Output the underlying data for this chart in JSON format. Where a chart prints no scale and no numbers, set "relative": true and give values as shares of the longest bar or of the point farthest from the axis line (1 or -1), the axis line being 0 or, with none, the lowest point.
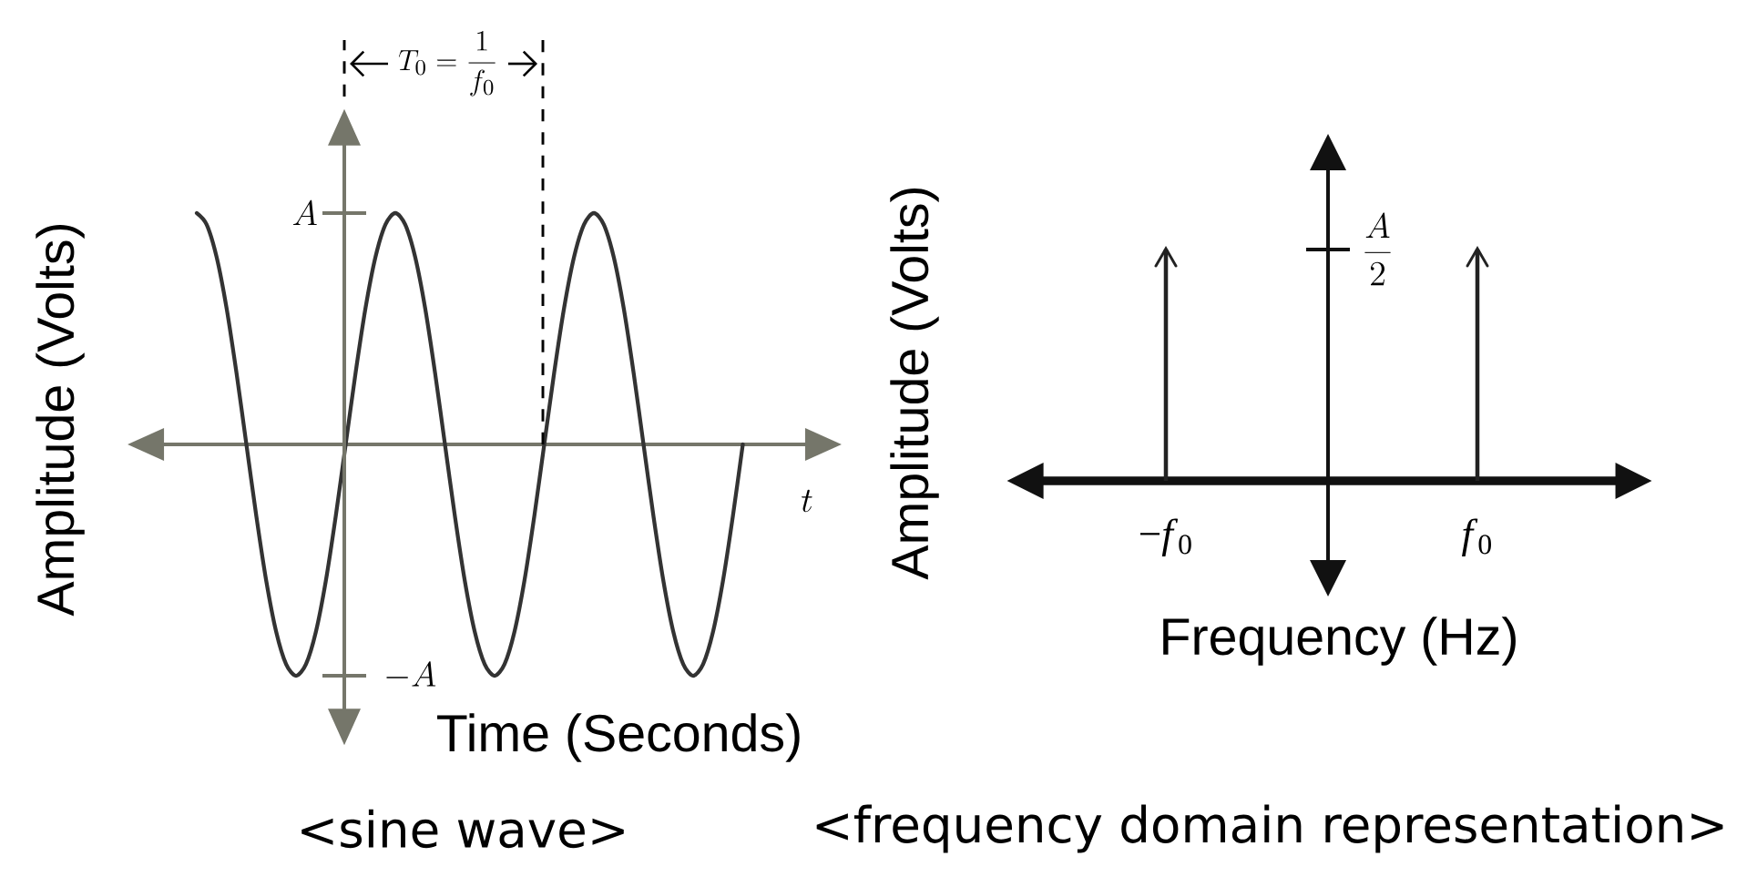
{
  "chart_data": [
    {
      "type": "line",
      "relative": true,
      "title": "<sine wave>",
      "xlabel": "Time (Seconds)",
      "ylabel": "Amplitude (Volts)",
      "categories": [
        null,
        null,
        null,
        null,
        null,
        null,
        null,
        null,
        null,
        null,
        null,
        null,
        null,
        null,
        null,
        null,
        null,
        null,
        null,
        null,
        null,
        null,
        null,
        null,
        null,
        null,
        null,
        null,
        null,
        null,
        null,
        null,
        null,
        null,
        null,
        null,
        null,
        null,
        null,
        null,
        null,
        null,
        null,
        null,
        null,
        null,
        null,
        null,
        null,
        null,
        null,
        null,
        null,
        null,
        null,
        null
      ],
      "series": [
        {
          "color": "#333333",
          "values": [
            1,
            0.95,
            0.81,
            0.59,
            0.31,
            0,
            -0.31,
            -0.59,
            -0.81,
            -0.95,
            -1,
            -0.95,
            -0.81,
            -0.59,
            -0.31,
            0,
            0.31,
            0.59,
            0.81,
            0.95,
            1,
            0.95,
            0.81,
            0.59,
            0.31,
            0,
            -0.31,
            -0.59,
            -0.81,
            -0.95,
            -1,
            -0.95,
            -0.81,
            -0.59,
            -0.31,
            0,
            0.31,
            0.59,
            0.81,
            0.95,
            1,
            0.95,
            0.81,
            0.59,
            0.31,
            0,
            -0.31,
            -0.59,
            -0.81,
            -0.95,
            -1,
            -0.95,
            -0.81,
            -0.59,
            -0.31,
            0
          ]
        }
      ],
      "annotations": [
        "A",
        "-A",
        "t",
        "T_0=\\frac{1}{f_0}"
      ]
    },
    {
      "type": "bar",
      "relative": true,
      "title": "<frequency domain representation>",
      "xlabel": "Frequency (Hz)",
      "ylabel": "Amplitude (Volts)",
      "categories": [
        "−*f*$_{0}$",
        "*f*$_{0}$"
      ],
      "series": [
        {
          "color": "#222222",
          "values": [
            1,
            1
          ]
        }
      ],
      "annotations": [
        "\\frac{A}{2}"
      ]
    }
  ]
}
